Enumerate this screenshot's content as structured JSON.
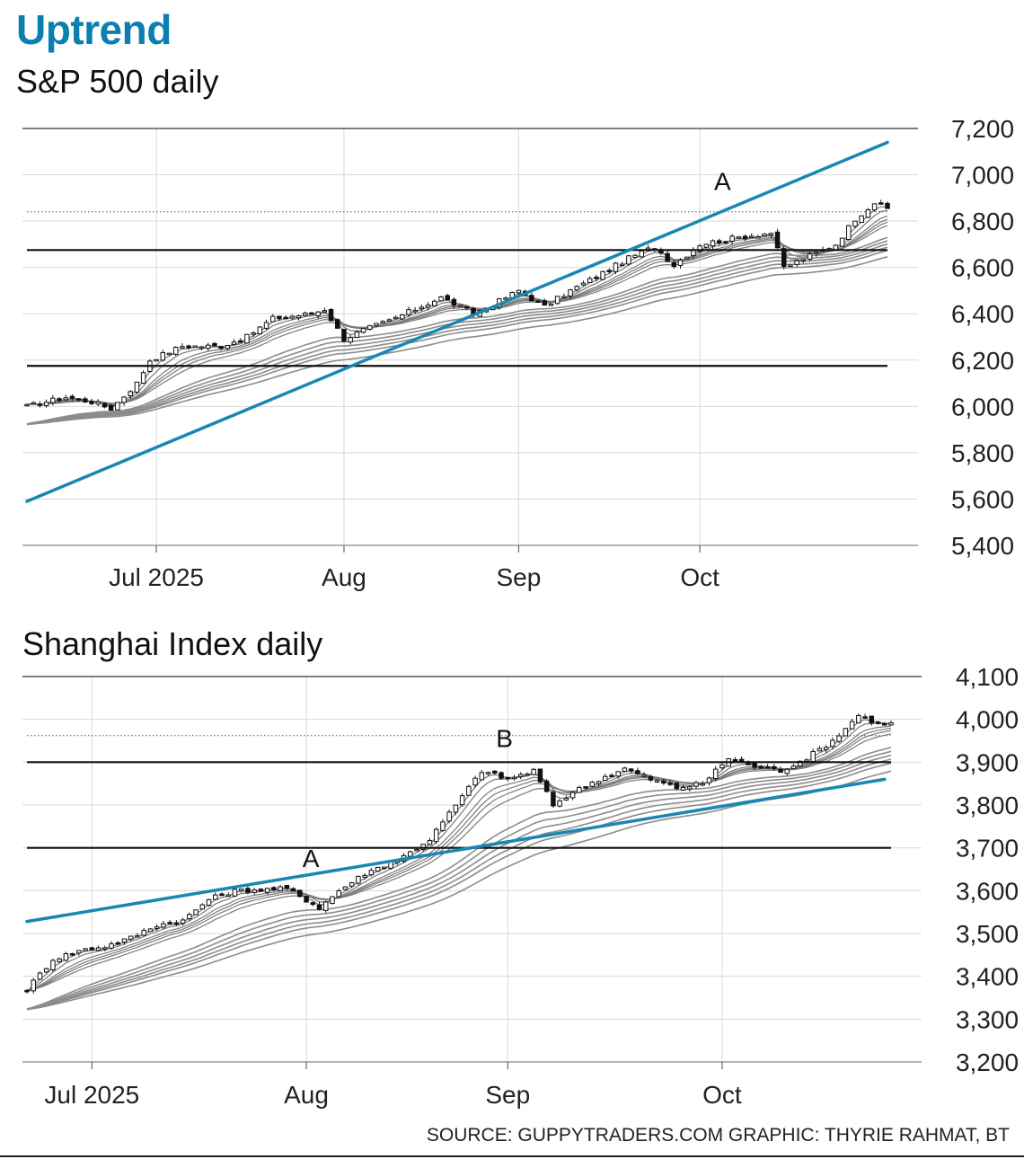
{
  "header": {
    "title": "Uptrend",
    "subtitle": "S&P 500 daily"
  },
  "footer": {
    "source": "SOURCE: GUPPYTRADERS.COM   GRAPHIC: THYRIE RAHMAT, BT"
  },
  "colors": {
    "title": "#0a7fb0",
    "trendline": "#1a86b4",
    "averages": "#8a8a8a",
    "grid": "#d9d9d9"
  },
  "chart_data": [
    {
      "type": "candlestick",
      "title": "S&P 500 daily",
      "x_range_days": [
        0,
        133
      ],
      "ylim": [
        5400,
        7200
      ],
      "y_ticks": [
        5400,
        5600,
        5800,
        6000,
        6200,
        6400,
        6600,
        6800,
        7000,
        7200
      ],
      "y_tick_labels": [
        "5,400",
        "5,600",
        "5,800",
        "6,000",
        "6,200",
        "6,400",
        "6,600",
        "6,800",
        "7,000",
        "7,200"
      ],
      "x_ticks": [
        {
          "day": 20,
          "label": "Jul 2025"
        },
        {
          "day": 49,
          "label": "Aug"
        },
        {
          "day": 76,
          "label": "Sep"
        },
        {
          "day": 104,
          "label": "Oct"
        }
      ],
      "horizontal_lines": [
        6675,
        6175
      ],
      "dotted_line": 6840,
      "trendline": {
        "from": [
          0,
          5590
        ],
        "to": [
          133,
          7140
        ]
      },
      "annotations": [
        {
          "label": "A",
          "day": 107.5,
          "value": 6935
        }
      ],
      "series": [
        {
          "name": "Close",
          "anchors": [
            [
              0,
              6000
            ],
            [
              6,
              6040
            ],
            [
              10,
              6020
            ],
            [
              13,
              5990
            ],
            [
              17,
              6100
            ],
            [
              19,
              6200
            ],
            [
              24,
              6260
            ],
            [
              30,
              6260
            ],
            [
              34,
              6300
            ],
            [
              38,
              6380
            ],
            [
              44,
              6400
            ],
            [
              46,
              6420
            ],
            [
              49,
              6290
            ],
            [
              52,
              6330
            ],
            [
              56,
              6370
            ],
            [
              60,
              6420
            ],
            [
              64,
              6470
            ],
            [
              69,
              6400
            ],
            [
              72,
              6440
            ],
            [
              76,
              6500
            ],
            [
              80,
              6430
            ],
            [
              84,
              6500
            ],
            [
              88,
              6560
            ],
            [
              93,
              6640
            ],
            [
              97,
              6690
            ],
            [
              100,
              6610
            ],
            [
              104,
              6700
            ],
            [
              110,
              6730
            ],
            [
              115,
              6750
            ],
            [
              117,
              6600
            ],
            [
              121,
              6650
            ],
            [
              125,
              6700
            ],
            [
              128,
              6810
            ],
            [
              131,
              6880
            ],
            [
              134,
              6840
            ]
          ]
        }
      ]
    },
    {
      "type": "candlestick",
      "title": "Shanghai Index daily",
      "x_range_days": [
        0,
        133
      ],
      "ylim": [
        3200,
        4100
      ],
      "y_ticks": [
        3200,
        3300,
        3400,
        3500,
        3600,
        3700,
        3800,
        3900,
        4000,
        4100
      ],
      "y_tick_labels": [
        "3,200",
        "3,300",
        "3,400",
        "3,500",
        "3,600",
        "3,700",
        "3,800",
        "3,900",
        "4,000",
        "4,100"
      ],
      "x_ticks": [
        {
          "day": 10,
          "label": "Jul 2025"
        },
        {
          "day": 43,
          "label": "Aug"
        },
        {
          "day": 74,
          "label": "Sep"
        },
        {
          "day": 107,
          "label": "Oct"
        }
      ],
      "horizontal_lines": [
        3900,
        3700
      ],
      "dotted_line": 3962,
      "trendline": {
        "from": [
          0,
          3528
        ],
        "to": [
          132,
          3860
        ]
      },
      "annotations": [
        {
          "label": "A",
          "day": 43.7,
          "value": 3655
        },
        {
          "label": "B",
          "day": 73.5,
          "value": 3935
        }
      ],
      "series": [
        {
          "name": "Close",
          "anchors": [
            [
              0,
              3370
            ],
            [
              4,
              3440
            ],
            [
              8,
              3460
            ],
            [
              12,
              3470
            ],
            [
              16,
              3490
            ],
            [
              20,
              3520
            ],
            [
              24,
              3530
            ],
            [
              28,
              3580
            ],
            [
              32,
              3600
            ],
            [
              40,
              3605
            ],
            [
              45,
              3560
            ],
            [
              48,
              3600
            ],
            [
              52,
              3640
            ],
            [
              58,
              3680
            ],
            [
              62,
              3720
            ],
            [
              66,
              3800
            ],
            [
              70,
              3880
            ],
            [
              74,
              3860
            ],
            [
              78,
              3880
            ],
            [
              81,
              3800
            ],
            [
              84,
              3830
            ],
            [
              88,
              3860
            ],
            [
              92,
              3885
            ],
            [
              96,
              3860
            ],
            [
              100,
              3840
            ],
            [
              104,
              3850
            ],
            [
              108,
              3910
            ],
            [
              112,
              3890
            ],
            [
              116,
              3880
            ],
            [
              120,
              3910
            ],
            [
              124,
              3950
            ],
            [
              128,
              4010
            ],
            [
              131,
              3990
            ]
          ]
        }
      ]
    }
  ]
}
